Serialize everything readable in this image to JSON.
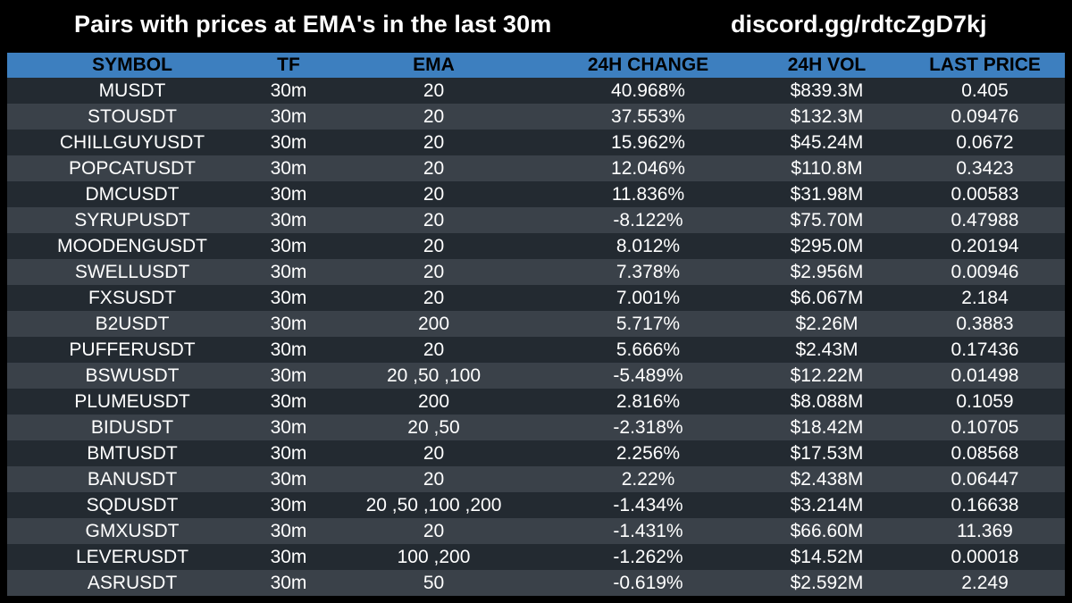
{
  "header": {
    "title": "Pairs with prices at EMA's in the last 30m",
    "discord": "discord.gg/rdtcZgD7kj"
  },
  "table": {
    "columns": [
      "SYMBOL",
      "TF",
      "EMA",
      "24H CHANGE",
      "24H VOL",
      "LAST PRICE"
    ],
    "rows": [
      [
        "MUSDT",
        "30m",
        "20",
        "40.968%",
        "$839.3M",
        "0.405"
      ],
      [
        "STOUSDT",
        "30m",
        "20",
        "37.553%",
        "$132.3M",
        "0.09476"
      ],
      [
        "CHILLGUYUSDT",
        "30m",
        "20",
        "15.962%",
        "$45.24M",
        "0.0672"
      ],
      [
        "POPCATUSDT",
        "30m",
        "20",
        "12.046%",
        "$110.8M",
        "0.3423"
      ],
      [
        "DMCUSDT",
        "30m",
        "20",
        "11.836%",
        "$31.98M",
        "0.00583"
      ],
      [
        "SYRUPUSDT",
        "30m",
        "20",
        "-8.122%",
        "$75.70M",
        "0.47988"
      ],
      [
        "MOODENGUSDT",
        "30m",
        "20",
        "8.012%",
        "$295.0M",
        "0.20194"
      ],
      [
        "SWELLUSDT",
        "30m",
        "20",
        "7.378%",
        "$2.956M",
        "0.00946"
      ],
      [
        "FXSUSDT",
        "30m",
        "20",
        "7.001%",
        "$6.067M",
        "2.184"
      ],
      [
        "B2USDT",
        "30m",
        "200",
        "5.717%",
        "$2.26M",
        "0.3883"
      ],
      [
        "PUFFERUSDT",
        "30m",
        "20",
        "5.666%",
        "$2.43M",
        "0.17436"
      ],
      [
        "BSWUSDT",
        "30m",
        "20 ,50 ,100",
        "-5.489%",
        "$12.22M",
        "0.01498"
      ],
      [
        "PLUMEUSDT",
        "30m",
        "200",
        "2.816%",
        "$8.088M",
        "0.1059"
      ],
      [
        "BIDUSDT",
        "30m",
        "20 ,50",
        "-2.318%",
        "$18.42M",
        "0.10705"
      ],
      [
        "BMTUSDT",
        "30m",
        "20",
        "2.256%",
        "$17.53M",
        "0.08568"
      ],
      [
        "BANUSDT",
        "30m",
        "20",
        "2.22%",
        "$2.438M",
        "0.06447"
      ],
      [
        "SQDUSDT",
        "30m",
        "20 ,50 ,100 ,200",
        "-1.434%",
        "$3.214M",
        "0.16638"
      ],
      [
        "GMXUSDT",
        "30m",
        "20",
        "-1.431%",
        "$66.60M",
        "11.369"
      ],
      [
        "LEVERUSDT",
        "30m",
        "100 ,200",
        "-1.262%",
        "$14.52M",
        "0.00018"
      ],
      [
        "ASRUSDT",
        "30m",
        "50",
        "-0.619%",
        "$2.592M",
        "2.249"
      ]
    ]
  },
  "colors": {
    "background": "#000000",
    "header_row": "#3d7fbf",
    "row_dark": "#232a31",
    "row_light": "#3a4149",
    "text": "#ffffff",
    "header_text": "#000000"
  }
}
